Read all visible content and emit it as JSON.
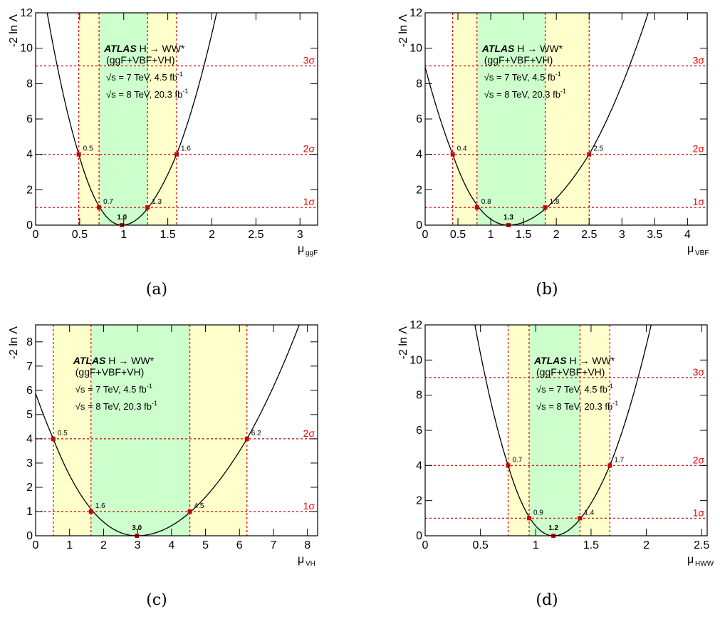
{
  "captions": [
    "(a)",
    "(b)",
    "(c)",
    "(d)"
  ],
  "colors": {
    "band1": "#ccffcc",
    "band2": "#ffffcc",
    "guide": "#cc0000",
    "curve": "#000000",
    "sigma_text": "#ee0000"
  },
  "chart_data": [
    {
      "type": "line",
      "title": "",
      "xlabel": "μ",
      "xlabel_sub": "ggF",
      "ylabel": "-2 ln Λ",
      "xlim": [
        0,
        3.2
      ],
      "ylim": [
        0,
        12
      ],
      "xticks": [
        "0",
        "0.5",
        "1",
        "1.5",
        "2",
        "2.5",
        "3"
      ],
      "yticks": [
        "0",
        "2",
        "4",
        "6",
        "8",
        "10",
        "12"
      ],
      "grid": false,
      "best_fit": 0.98,
      "best_fit_label": "1.0",
      "one_sigma": {
        "low": 0.72,
        "high": 1.27,
        "low_label": "0.7",
        "high_label": "1.3"
      },
      "two_sigma": {
        "low": 0.49,
        "high": 1.6,
        "low_label": "0.5",
        "high_label": "1.6"
      },
      "sigma_levels": [
        {
          "y": 1,
          "label": "1σ"
        },
        {
          "y": 4,
          "label": "2σ"
        },
        {
          "y": 9,
          "label": "3σ"
        }
      ],
      "annotation": {
        "atlas": "ATLAS",
        "process": "H → WW*",
        "channels": "(ggF+VBF+VH)",
        "energy1": "√s = 7 TeV, 4.5 fb",
        "energy2": "√s = 8 TeV, 20.3 fb",
        "lumi_sup": "-1"
      }
    },
    {
      "type": "line",
      "title": "",
      "xlabel": "μ",
      "xlabel_sub": "VBF",
      "ylabel": "-2 ln Λ",
      "xlim": [
        0,
        4.3
      ],
      "ylim": [
        0,
        12
      ],
      "xticks": [
        "0",
        "0.5",
        "1",
        "1.5",
        "2",
        "2.5",
        "3",
        "3.5",
        "4"
      ],
      "yticks": [
        "0",
        "2",
        "4",
        "6",
        "8",
        "10",
        "12"
      ],
      "grid": false,
      "best_fit": 1.27,
      "best_fit_label": "1.3",
      "one_sigma": {
        "low": 0.79,
        "high": 1.83,
        "low_label": "0.8",
        "high_label": "1.8"
      },
      "two_sigma": {
        "low": 0.42,
        "high": 2.5,
        "low_label": "0.4",
        "high_label": "2.5"
      },
      "sigma_levels": [
        {
          "y": 1,
          "label": "1σ"
        },
        {
          "y": 4,
          "label": "2σ"
        },
        {
          "y": 9,
          "label": "3σ"
        }
      ],
      "annotation": {
        "atlas": "ATLAS",
        "process": "H → WW*",
        "channels": "(ggF+VBF+VH)",
        "energy1": "√s = 7 TeV, 4.5 fb",
        "energy2": "√s = 8 TeV, 20.3 fb",
        "lumi_sup": "-1"
      }
    },
    {
      "type": "line",
      "title": "",
      "xlabel": "μ",
      "xlabel_sub": "VH",
      "ylabel": "-2 ln Λ",
      "xlim": [
        0,
        8.3
      ],
      "ylim": [
        0,
        8.7
      ],
      "xticks": [
        "0",
        "1",
        "2",
        "3",
        "4",
        "5",
        "6",
        "7",
        "8"
      ],
      "yticks": [
        "0",
        "1",
        "2",
        "3",
        "4",
        "5",
        "6",
        "7",
        "8"
      ],
      "grid": false,
      "best_fit": 2.98,
      "best_fit_label": "3.0",
      "one_sigma": {
        "low": 1.63,
        "high": 4.54,
        "low_label": "1.6",
        "high_label": "4.5"
      },
      "two_sigma": {
        "low": 0.52,
        "high": 6.22,
        "low_label": "0.5",
        "high_label": "6.2"
      },
      "sigma_levels": [
        {
          "y": 1,
          "label": "1σ"
        },
        {
          "y": 4,
          "label": "2σ"
        }
      ],
      "annotation": {
        "atlas": "ATLAS",
        "process": "H → WW*",
        "channels": "(ggF+VBF+VH)",
        "energy1": "√s = 7 TeV, 4.5 fb",
        "energy2": "√s = 8 TeV, 20.3 fb",
        "lumi_sup": "-1"
      }
    },
    {
      "type": "line",
      "title": "",
      "xlabel": "μ",
      "xlabel_sub": "HWW",
      "ylabel": "-2 ln Λ",
      "xlim": [
        0,
        2.55
      ],
      "ylim": [
        0,
        12
      ],
      "xticks": [
        "0",
        "0.5",
        "1",
        "1.5",
        "2",
        "2.5"
      ],
      "yticks": [
        "0",
        "2",
        "4",
        "6",
        "8",
        "10",
        "12"
      ],
      "grid": false,
      "best_fit": 1.16,
      "best_fit_label": "1.2",
      "one_sigma": {
        "low": 0.94,
        "high": 1.4,
        "low_label": "0.9",
        "high_label": "1.4"
      },
      "two_sigma": {
        "low": 0.75,
        "high": 1.67,
        "low_label": "0.7",
        "high_label": "1.7"
      },
      "sigma_levels": [
        {
          "y": 1,
          "label": "1σ"
        },
        {
          "y": 4,
          "label": "2σ"
        },
        {
          "y": 9,
          "label": "3σ"
        }
      ],
      "annotation": {
        "atlas": "ATLAS",
        "process": "H → WW*",
        "channels": "(ggF+VBF+VH)",
        "energy1": "√s = 7 TeV, 4.5 fb",
        "energy2": "√s = 8 TeV, 20.3 fb",
        "lumi_sup": "-1"
      }
    }
  ]
}
